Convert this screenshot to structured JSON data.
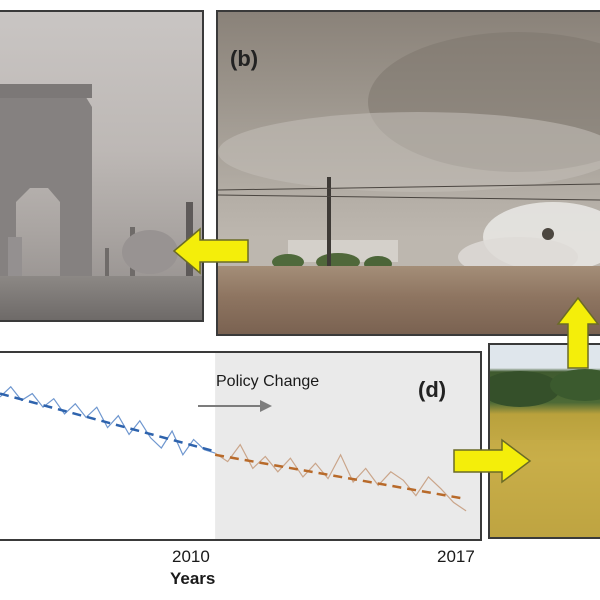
{
  "panels": {
    "b": {
      "label": "(b)"
    },
    "d": {
      "label": "(d)"
    }
  },
  "annotations": {
    "policy_change": "Policy Change"
  },
  "colors": {
    "arrow_yellow": "#f4ee0a",
    "arrow_outline": "#6b6b26",
    "series_before": "#6f97cf",
    "trend_before": "#2e63ad",
    "series_after": "#caa58a",
    "trend_after": "#b86a2a",
    "post_policy_shade": "#eaeaea",
    "policy_arrow": "#7c7c7c"
  },
  "chart_data": {
    "type": "line",
    "title": "",
    "xlabel": "Years",
    "ylabel": "",
    "x_ticks": [
      "2010",
      "2017"
    ],
    "xlim": [
      2004,
      2017.5
    ],
    "ylim": [
      0,
      1
    ],
    "grid": false,
    "policy_change_year": 2010,
    "series": [
      {
        "segment": "before",
        "x": [
          2004.0,
          2004.3,
          2004.6,
          2004.9,
          2005.2,
          2005.5,
          2005.8,
          2006.1,
          2006.4,
          2006.7,
          2007.0,
          2007.3,
          2007.6,
          2007.9,
          2008.2,
          2008.5,
          2008.8,
          2009.1,
          2009.4,
          2009.7,
          2010.0
        ],
        "y": [
          0.8,
          0.86,
          0.78,
          0.82,
          0.74,
          0.79,
          0.7,
          0.76,
          0.68,
          0.74,
          0.62,
          0.69,
          0.58,
          0.66,
          0.56,
          0.5,
          0.6,
          0.46,
          0.55,
          0.49,
          0.47
        ]
      },
      {
        "segment": "after",
        "x": [
          2010.0,
          2010.35,
          2010.7,
          2011.05,
          2011.4,
          2011.75,
          2012.1,
          2012.45,
          2012.8,
          2013.15,
          2013.5,
          2013.85,
          2014.2,
          2014.55,
          2014.9,
          2015.25,
          2015.6,
          2015.95,
          2016.3,
          2016.65,
          2017.0
        ],
        "y": [
          0.47,
          0.42,
          0.52,
          0.38,
          0.45,
          0.36,
          0.44,
          0.33,
          0.41,
          0.32,
          0.46,
          0.3,
          0.38,
          0.28,
          0.36,
          0.31,
          0.22,
          0.33,
          0.26,
          0.18,
          0.13
        ]
      }
    ],
    "trends": [
      {
        "segment": "before",
        "x": [
          2004.0,
          2010.0
        ],
        "y": [
          0.82,
          0.48
        ]
      },
      {
        "segment": "after",
        "x": [
          2010.0,
          2017.0
        ],
        "y": [
          0.46,
          0.2
        ]
      }
    ]
  },
  "axis": {
    "tick_2010": "2010",
    "tick_2017": "2017",
    "title": "Years"
  }
}
